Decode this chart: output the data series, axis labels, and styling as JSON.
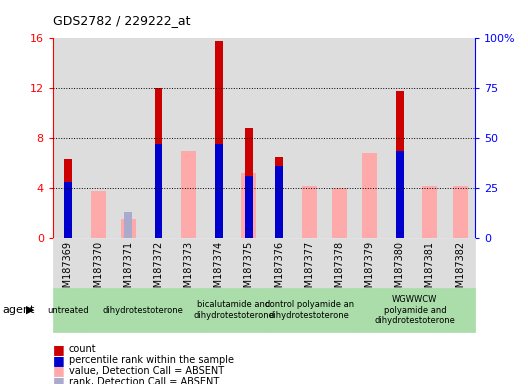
{
  "title": "GDS2782 / 229222_at",
  "samples": [
    "GSM187369",
    "GSM187370",
    "GSM187371",
    "GSM187372",
    "GSM187373",
    "GSM187374",
    "GSM187375",
    "GSM187376",
    "GSM187377",
    "GSM187378",
    "GSM187379",
    "GSM187380",
    "GSM187381",
    "GSM187382"
  ],
  "count_values": [
    6.3,
    0,
    0,
    12.0,
    0,
    15.8,
    8.8,
    6.5,
    0,
    0,
    0,
    11.8,
    0,
    0
  ],
  "percentile_rank_scaled": [
    4.5,
    0,
    0,
    7.5,
    0,
    7.5,
    5.0,
    5.8,
    0,
    0,
    0,
    7.0,
    0,
    0
  ],
  "absent_value": [
    0,
    3.8,
    1.5,
    0,
    7.0,
    0,
    5.2,
    0,
    4.2,
    4.0,
    6.8,
    0,
    4.2,
    4.2
  ],
  "absent_rank_scaled": [
    0,
    0,
    2.1,
    0,
    0,
    0,
    0,
    0,
    0,
    0,
    0,
    0,
    0,
    0
  ],
  "count_color": "#cc0000",
  "percentile_color": "#0000cc",
  "absent_value_color": "#ffaaaa",
  "absent_rank_color": "#aaaacc",
  "group_defs": [
    {
      "start": 0,
      "end": 0,
      "label": "untreated"
    },
    {
      "start": 1,
      "end": 4,
      "label": "dihydrotestoterone"
    },
    {
      "start": 5,
      "end": 6,
      "label": "bicalutamide and\ndihydrotestoterone"
    },
    {
      "start": 7,
      "end": 9,
      "label": "control polyamide an\ndihydrotestoterone"
    },
    {
      "start": 10,
      "end": 13,
      "label": "WGWWCW\npolyamide and\ndihydrotestoterone"
    }
  ],
  "group_color": "#aaddaa",
  "col_bg_color": "#dddddd",
  "ylim_left": [
    0,
    16
  ],
  "ylim_right": [
    0,
    100
  ],
  "yticks_left": [
    0,
    4,
    8,
    12,
    16
  ],
  "yticks_right": [
    0,
    25,
    50,
    75,
    100
  ],
  "ytick_labels_right": [
    "0",
    "25",
    "50",
    "75",
    "100%"
  ],
  "figsize": [
    5.28,
    3.84
  ],
  "dpi": 100
}
